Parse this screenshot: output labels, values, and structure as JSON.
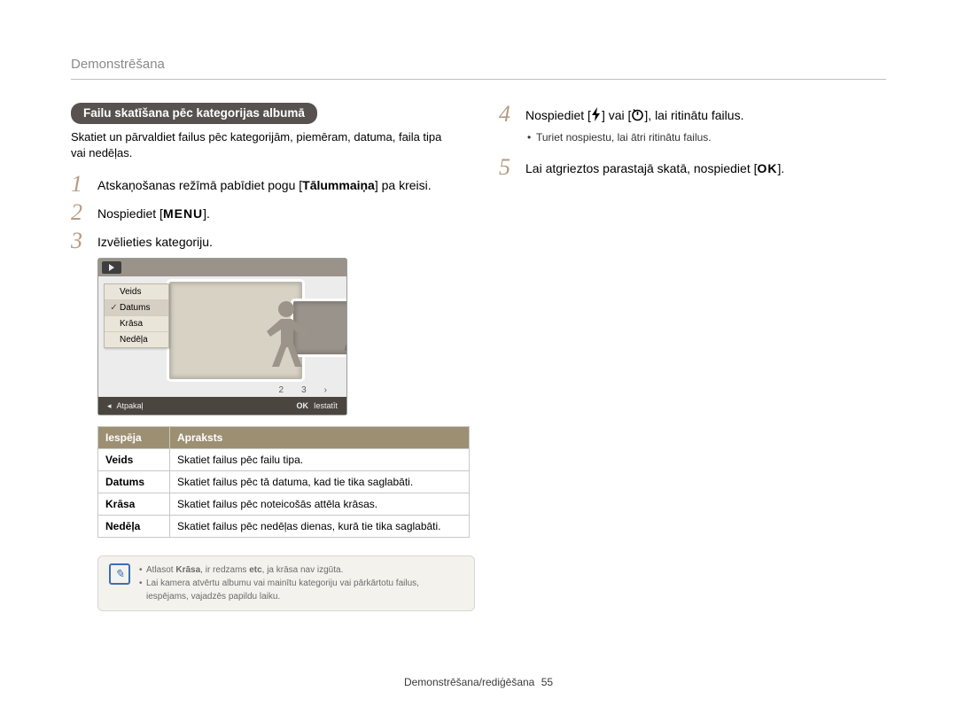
{
  "page": {
    "title": "Demonstrēšana",
    "footer_section": "Demonstrēšana/rediģēšana",
    "page_number": "55"
  },
  "left": {
    "section_title": "Failu skatīšana pēc kategorijas albumā",
    "intro": "Skatiet un pārvaldiet failus pēc kategorijām, piemēram, datuma, faila tipa vai nedēļas.",
    "steps": {
      "1": {
        "num": "1",
        "before": "Atskaņošanas režīmā pabīdiet pogu [",
        "bold": "Tālummaiņa",
        "after": "] pa kreisi."
      },
      "2": {
        "num": "2",
        "before": "Nospiediet [",
        "menu": "MENU",
        "after": "]."
      },
      "3": {
        "num": "3",
        "text": "Izvēlieties kategoriju."
      }
    },
    "lcd": {
      "categories": [
        "Veids",
        "Datums",
        "Krāsa",
        "Nedēļa"
      ],
      "selected_index": 1,
      "numbers": [
        "2",
        "3"
      ],
      "footer_back_label": "Atpakaļ",
      "footer_set_label": "Iestatīt",
      "footer_ok": "OK"
    },
    "table": {
      "headers": {
        "opt": "Iespēja",
        "desc": "Apraksts"
      },
      "rows": [
        {
          "opt": "Veids",
          "desc": "Skatiet failus pēc failu tipa."
        },
        {
          "opt": "Datums",
          "desc": "Skatiet failus pēc tā datuma, kad tie tika saglabāti."
        },
        {
          "opt": "Krāsa",
          "desc": "Skatiet failus pēc noteicošās attēla krāsas."
        },
        {
          "opt": "Nedēļa",
          "desc": "Skatiet failus pēc nedēļas dienas, kurā tie tika saglabāti."
        }
      ]
    },
    "tip": {
      "lines": [
        "Atlasot <b>Krāsa</b>, ir redzams <b>etc</b>, ja krāsa nav izgūta.",
        "Lai kamera atvērtu albumu vai mainītu kategoriju vai pārkārtotu failus, iespējams, vajadzēs papildu laiku."
      ]
    }
  },
  "right": {
    "step4": {
      "num": "4",
      "before": "Nospiediet [",
      "between": "] vai [",
      "after": "], lai ritinātu failus."
    },
    "step4_sub": "Turiet nospiestu, lai ātri ritinātu failus.",
    "step5": {
      "num": "5",
      "before": "Lai atgrieztos parastajā skatā, nospiediet [",
      "ok": "OK",
      "after": "]."
    }
  },
  "colors": {
    "title_gray": "#8a8a8a",
    "pill_bg": "#575250",
    "step_num": "#b69b82",
    "table_head": "#9d8f72",
    "tip_border": "#3d6fb5"
  }
}
